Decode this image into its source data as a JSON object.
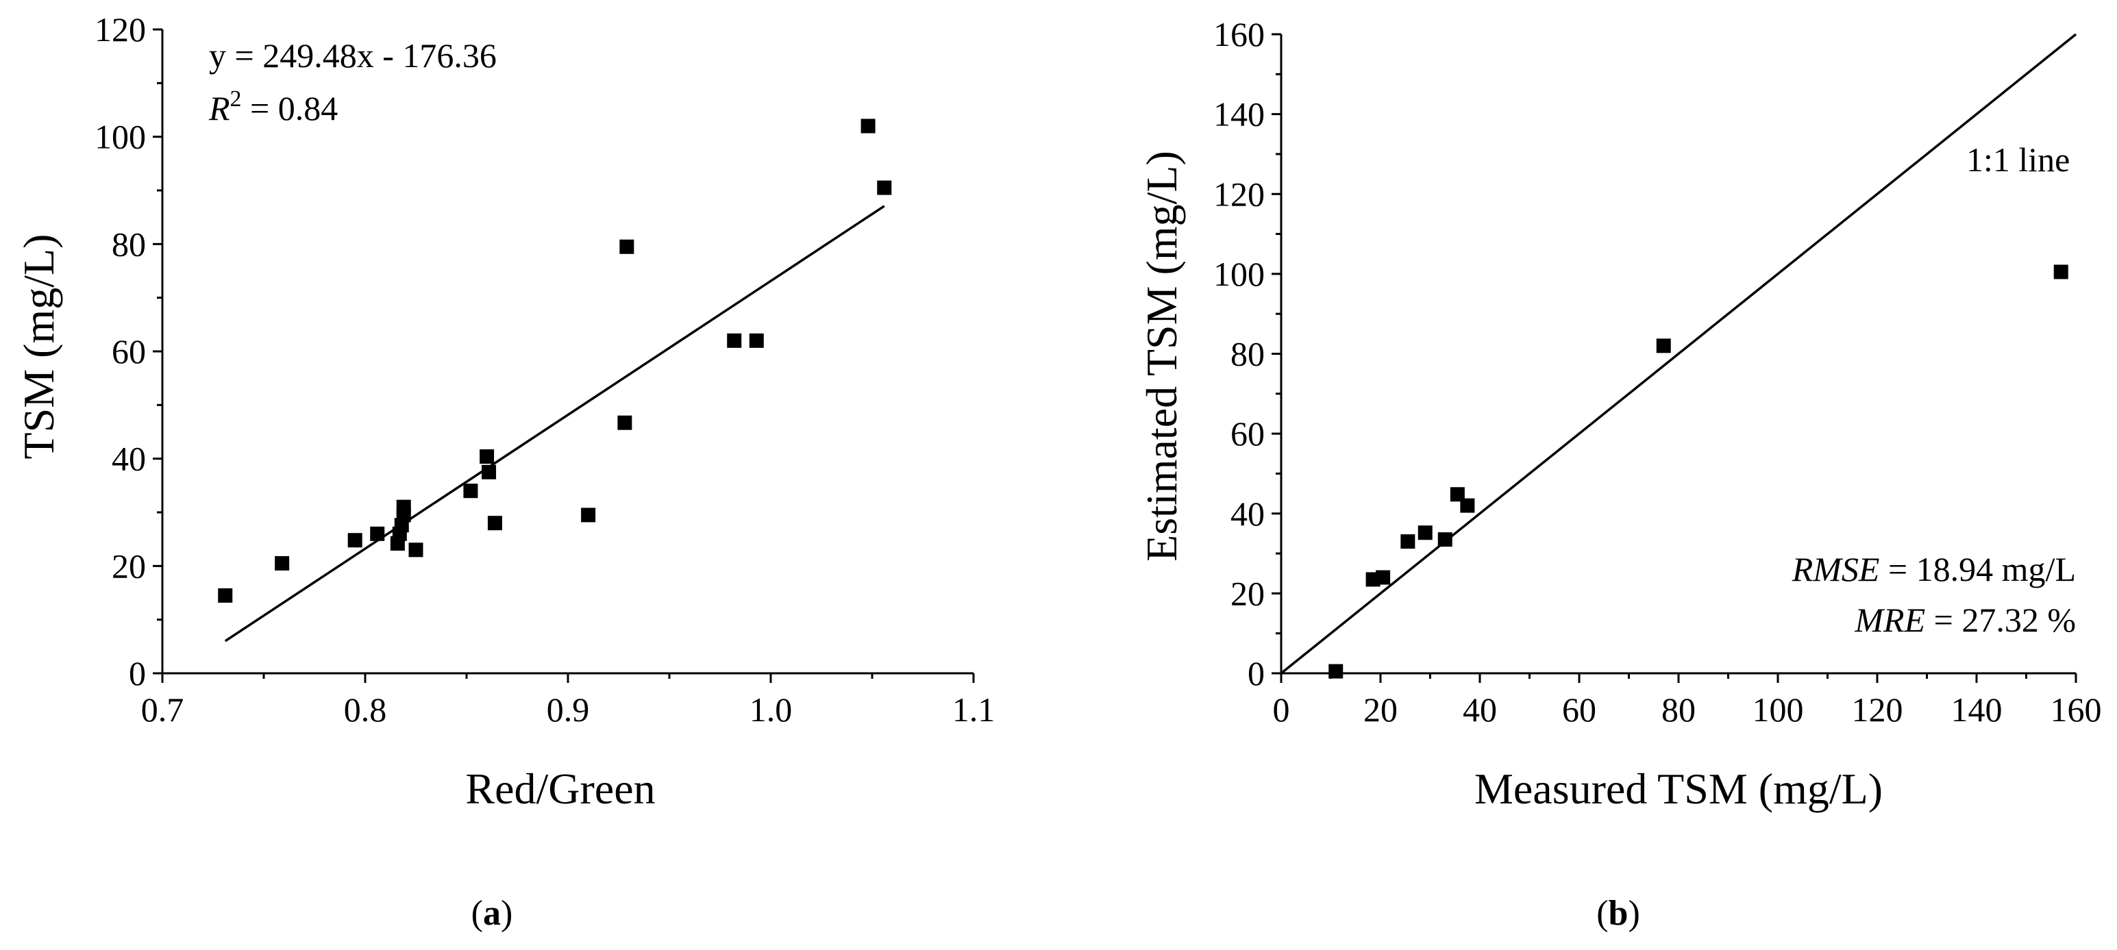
{
  "chart_data": [
    {
      "panel": "a",
      "type": "scatter",
      "xlabel": "Red/Green",
      "ylabel": "TSM (mg/L)",
      "xlim": [
        0.7,
        1.1
      ],
      "ylim": [
        0,
        120
      ],
      "x_ticks": [
        0.7,
        0.8,
        0.9,
        1.0,
        1.1
      ],
      "x_tick_labels": [
        "0.7",
        "0.8",
        "0.9",
        "1.0",
        "1.1"
      ],
      "y_ticks": [
        0,
        20,
        40,
        60,
        80,
        100,
        120
      ],
      "y_tick_labels": [
        "0",
        "20",
        "40",
        "60",
        "80",
        "100",
        "120"
      ],
      "grid": false,
      "series": [
        {
          "name": "samples",
          "marker": "square",
          "points": [
            {
              "x": 0.731,
              "y": 14.5
            },
            {
              "x": 0.759,
              "y": 20.5
            },
            {
              "x": 0.795,
              "y": 24.8
            },
            {
              "x": 0.806,
              "y": 26.0
            },
            {
              "x": 0.816,
              "y": 24.2
            },
            {
              "x": 0.817,
              "y": 26.0
            },
            {
              "x": 0.818,
              "y": 27.6
            },
            {
              "x": 0.819,
              "y": 29.5
            },
            {
              "x": 0.819,
              "y": 31.0
            },
            {
              "x": 0.825,
              "y": 23.0
            },
            {
              "x": 0.852,
              "y": 34.0
            },
            {
              "x": 0.86,
              "y": 40.4
            },
            {
              "x": 0.861,
              "y": 37.5
            },
            {
              "x": 0.864,
              "y": 28.0
            },
            {
              "x": 0.91,
              "y": 29.5
            },
            {
              "x": 0.928,
              "y": 46.7
            },
            {
              "x": 0.929,
              "y": 79.5
            },
            {
              "x": 0.982,
              "y": 62.0
            },
            {
              "x": 0.993,
              "y": 62.0
            },
            {
              "x": 1.048,
              "y": 102.0
            },
            {
              "x": 1.056,
              "y": 90.5
            }
          ]
        }
      ],
      "fit_line": {
        "slope": 249.48,
        "intercept": -176.36,
        "x_range": [
          0.731,
          1.056
        ]
      },
      "equation_text": "y = 249.48x - 176.36",
      "r2_symbol": "R",
      "r2_superscript": "2",
      "r2_value": " = 0.84",
      "panel_label": "a"
    },
    {
      "panel": "b",
      "type": "scatter",
      "xlabel": "Measured TSM (mg/L)",
      "ylabel": "Estimated TSM (mg/L)",
      "xlim": [
        0,
        160
      ],
      "ylim": [
        0,
        160
      ],
      "x_ticks": [
        0,
        20,
        40,
        60,
        80,
        100,
        120,
        140,
        160
      ],
      "x_tick_labels": [
        "0",
        "20",
        "40",
        "60",
        "80",
        "100",
        "120",
        "140",
        "160"
      ],
      "y_ticks": [
        0,
        20,
        40,
        60,
        80,
        100,
        120,
        140,
        160
      ],
      "y_tick_labels": [
        "0",
        "20",
        "40",
        "60",
        "80",
        "100",
        "120",
        "140",
        "160"
      ],
      "grid": false,
      "series": [
        {
          "name": "samples",
          "marker": "square",
          "points": [
            {
              "x": 11.0,
              "y": 0.5
            },
            {
              "x": 18.5,
              "y": 23.5
            },
            {
              "x": 20.5,
              "y": 24.0
            },
            {
              "x": 25.5,
              "y": 33.0
            },
            {
              "x": 29.0,
              "y": 35.2
            },
            {
              "x": 33.0,
              "y": 33.5
            },
            {
              "x": 35.5,
              "y": 44.8
            },
            {
              "x": 37.5,
              "y": 42.0
            },
            {
              "x": 77.0,
              "y": 82.0
            },
            {
              "x": 157.0,
              "y": 100.5
            }
          ]
        }
      ],
      "reference_line": {
        "label": "1:1 line",
        "from": [
          0,
          0
        ],
        "to": [
          160,
          160
        ]
      },
      "rmse_symbol": "RMSE",
      "rmse_value": " = 18.94 mg/L",
      "mre_symbol": "MRE",
      "mre_value": " = 27.32 %",
      "panel_label": "b"
    }
  ]
}
